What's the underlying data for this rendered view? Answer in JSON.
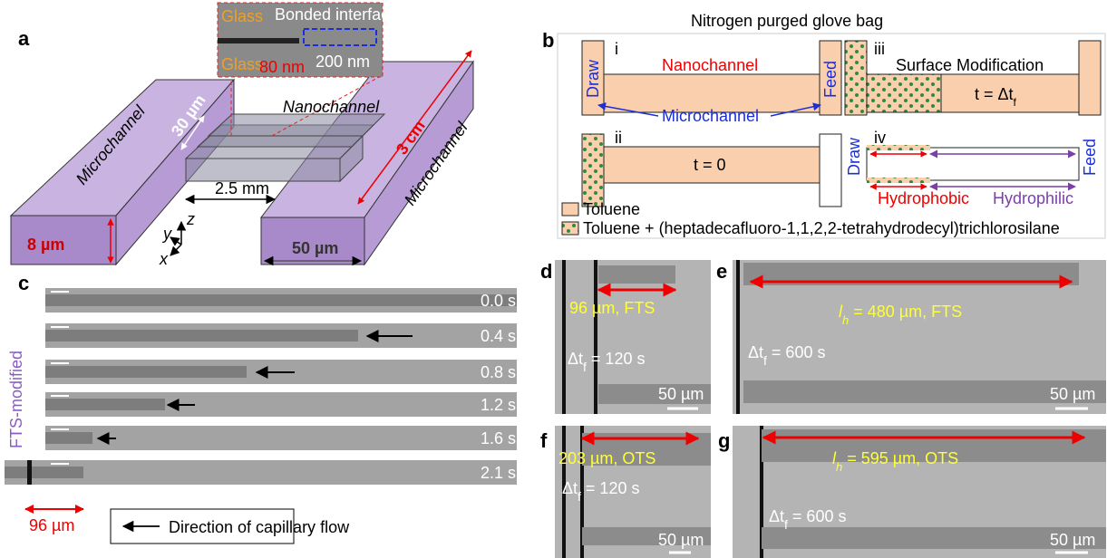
{
  "panel_a": {
    "label": "a",
    "inset": {
      "top_material": "Glass",
      "interface": "Bonded interface",
      "bottom_material": "Glass",
      "gap": "80 nm",
      "scale": "200 nm"
    },
    "nanochannel": "Nanochannel",
    "microchannel_left": "Microchannel",
    "microchannel_right": "Microchannel",
    "width": "30 µm",
    "length": "3 cm",
    "spacing": "2.5 mm",
    "depth": "8 µm",
    "micro_width": "50 µm",
    "axes": [
      "y",
      "z",
      "x"
    ]
  },
  "panel_b": {
    "label": "b",
    "title": "Nitrogen purged glove bag",
    "step_i": {
      "numeral": "i",
      "channel": "Nanochannel",
      "draw": "Draw",
      "feed": "Feed",
      "microchannel": "Microchannel"
    },
    "step_ii": {
      "numeral": "ii",
      "time": "t = 0"
    },
    "step_iii": {
      "numeral": "iii",
      "title": "Surface Modification",
      "time": "t = Δt",
      "time_sub": "f"
    },
    "step_iv": {
      "numeral": "iv",
      "draw": "Draw",
      "feed": "Feed",
      "hydrophobic": "Hydrophobic",
      "hydrophilic": "Hydrophilic"
    },
    "legend": [
      "Toluene",
      "Toluene + (heptadecafluoro-1,1,2,2-tetrahydrodecyl)trichlorosilane"
    ]
  },
  "panel_c": {
    "label": "c",
    "side_label": "FTS-modified",
    "times": [
      "0.0 s",
      "0.4 s",
      "0.8 s",
      "1.2 s",
      "1.6 s",
      "2.1 s"
    ],
    "length": "96 µm",
    "legend": "Direction of capillary flow"
  },
  "panels_dg": [
    {
      "label": "d",
      "length": "96 µm, FTS",
      "dt": "Δt",
      "dt_sub": "f",
      "dt_rest": " = 120 s",
      "scale": "50 µm"
    },
    {
      "label": "e",
      "length_var": "l",
      "length_sub": "h",
      "length": " = 480 µm, FTS",
      "dt": "Δt",
      "dt_sub": "f",
      "dt_rest": " = 600 s",
      "scale": "50 µm"
    },
    {
      "label": "f",
      "length": "203 µm, OTS",
      "dt": "Δt",
      "dt_sub": "f",
      "dt_rest": " = 120 s",
      "scale": "50 µm"
    },
    {
      "label": "g",
      "length_var": "l",
      "length_sub": "h",
      "length": " = 595 µm, OTS",
      "dt": "Δt",
      "dt_sub": "f",
      "dt_rest": " = 600 s",
      "scale": "50 µm"
    }
  ]
}
